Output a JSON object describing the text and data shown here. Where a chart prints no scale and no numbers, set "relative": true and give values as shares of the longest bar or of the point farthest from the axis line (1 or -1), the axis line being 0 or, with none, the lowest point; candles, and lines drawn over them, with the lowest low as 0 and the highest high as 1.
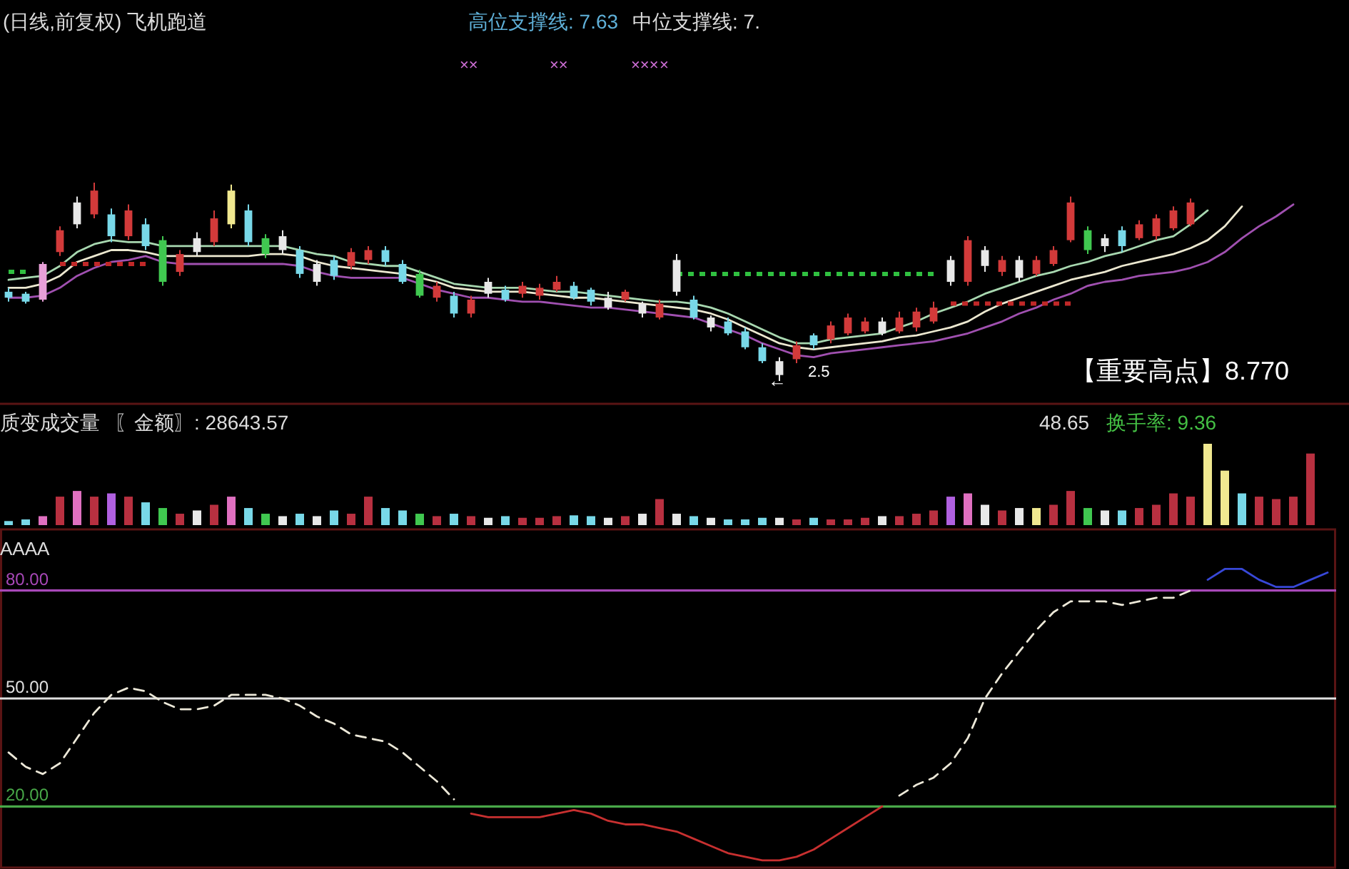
{
  "chart_data": [
    {
      "type": "candlestick",
      "title": "(日线,前复权) 飞机跑道",
      "relative": true,
      "annotations": [
        "高位支撑线: 7.63",
        "中位支撑线: 7.",
        "××",
        "××",
        "×××",
        "×",
        "←",
        "2.5",
        "【重要高点】8.770"
      ],
      "categories": [
        null,
        null,
        null,
        null,
        null,
        null,
        null,
        null,
        null,
        null,
        null,
        null,
        null,
        null,
        null,
        null,
        null,
        null,
        null,
        null,
        null,
        null,
        null,
        null,
        null,
        null,
        null,
        null,
        null,
        null,
        null,
        null,
        null,
        null,
        null,
        null,
        null,
        null,
        null,
        null,
        null,
        null,
        null,
        null,
        null,
        null,
        null,
        null,
        null,
        null,
        null,
        null,
        null,
        null,
        null,
        null,
        null,
        null,
        null,
        null,
        null,
        null,
        null,
        null,
        null,
        null,
        null,
        null,
        null,
        null,
        null,
        null,
        null,
        null,
        null,
        null,
        null,
        null
      ],
      "ohlc": [
        [
          0.45,
          0.47,
          0.4,
          0.42
        ],
        [
          0.44,
          0.45,
          0.39,
          0.4
        ],
        [
          0.41,
          0.6,
          0.4,
          0.59
        ],
        [
          0.65,
          0.78,
          0.63,
          0.76
        ],
        [
          0.9,
          0.93,
          0.77,
          0.79
        ],
        [
          0.84,
          1,
          0.82,
          0.96
        ],
        [
          0.84,
          0.87,
          0.7,
          0.73
        ],
        [
          0.73,
          0.89,
          0.71,
          0.86
        ],
        [
          0.79,
          0.82,
          0.66,
          0.68
        ],
        [
          0.71,
          0.73,
          0.48,
          0.5
        ],
        [
          0.55,
          0.66,
          0.53,
          0.64
        ],
        [
          0.72,
          0.75,
          0.63,
          0.65
        ],
        [
          0.7,
          0.86,
          0.68,
          0.82
        ],
        [
          0.79,
          0.99,
          0.77,
          0.96
        ],
        [
          0.86,
          0.89,
          0.68,
          0.7
        ],
        [
          0.72,
          0.74,
          0.62,
          0.64
        ],
        [
          0.73,
          0.76,
          0.64,
          0.66
        ],
        [
          0.66,
          0.68,
          0.52,
          0.54
        ],
        [
          0.59,
          0.61,
          0.48,
          0.5
        ],
        [
          0.61,
          0.63,
          0.51,
          0.53
        ],
        [
          0.58,
          0.67,
          0.56,
          0.65
        ],
        [
          0.61,
          0.68,
          0.59,
          0.66
        ],
        [
          0.66,
          0.68,
          0.58,
          0.6
        ],
        [
          0.59,
          0.61,
          0.49,
          0.5
        ],
        [
          0.54,
          0.56,
          0.42,
          0.43
        ],
        [
          0.42,
          0.5,
          0.4,
          0.48
        ],
        [
          0.43,
          0.45,
          0.32,
          0.34
        ],
        [
          0.34,
          0.43,
          0.32,
          0.41
        ],
        [
          0.5,
          0.52,
          0.42,
          0.44
        ],
        [
          0.46,
          0.48,
          0.4,
          0.41
        ],
        [
          0.44,
          0.5,
          0.42,
          0.48
        ],
        [
          0.43,
          0.49,
          0.41,
          0.47
        ],
        [
          0.46,
          0.53,
          0.45,
          0.5
        ],
        [
          0.48,
          0.5,
          0.41,
          0.42
        ],
        [
          0.46,
          0.47,
          0.38,
          0.4
        ],
        [
          0.42,
          0.45,
          0.36,
          0.37
        ],
        [
          0.41,
          0.46,
          0.4,
          0.45
        ],
        [
          0.39,
          0.4,
          0.32,
          0.34
        ],
        [
          0.32,
          0.41,
          0.31,
          0.39
        ],
        [
          0.45,
          0.64,
          0.43,
          0.61
        ],
        [
          0.41,
          0.43,
          0.31,
          0.32
        ],
        [
          0.32,
          0.33,
          0.25,
          0.27
        ],
        [
          0.3,
          0.32,
          0.23,
          0.24
        ],
        [
          0.25,
          0.27,
          0.16,
          0.17
        ],
        [
          0.17,
          0.19,
          0.09,
          0.1
        ],
        [
          0.1,
          0.12,
          0,
          0.03
        ],
        [
          0.11,
          0.2,
          0.09,
          0.18
        ],
        [
          0.23,
          0.24,
          0.16,
          0.18
        ],
        [
          0.21,
          0.3,
          0.19,
          0.28
        ],
        [
          0.24,
          0.34,
          0.23,
          0.32
        ],
        [
          0.25,
          0.32,
          0.24,
          0.3
        ],
        [
          0.3,
          0.32,
          0.23,
          0.24
        ],
        [
          0.25,
          0.35,
          0.24,
          0.32
        ],
        [
          0.27,
          0.37,
          0.25,
          0.35
        ],
        [
          0.3,
          0.4,
          0.29,
          0.37
        ],
        [
          0.5,
          0.63,
          0.48,
          0.61
        ],
        [
          0.5,
          0.73,
          0.48,
          0.71
        ],
        [
          0.66,
          0.68,
          0.55,
          0.58
        ],
        [
          0.55,
          0.63,
          0.53,
          0.61
        ],
        [
          0.61,
          0.63,
          0.5,
          0.52
        ],
        [
          0.54,
          0.63,
          0.53,
          0.61
        ],
        [
          0.59,
          0.68,
          0.58,
          0.66
        ],
        [
          0.71,
          0.93,
          0.7,
          0.9
        ],
        [
          0.76,
          0.78,
          0.64,
          0.66
        ],
        [
          0.72,
          0.74,
          0.65,
          0.68
        ],
        [
          0.76,
          0.78,
          0.65,
          0.68
        ],
        [
          0.72,
          0.81,
          0.71,
          0.79
        ],
        [
          0.73,
          0.84,
          0.71,
          0.82
        ],
        [
          0.77,
          0.88,
          0.76,
          0.86
        ],
        [
          0.79,
          0.92,
          0.78,
          0.9
        ],
        null,
        null,
        null,
        null,
        null,
        null,
        null,
        null
      ],
      "colors": [
        "#78d8e8",
        "#78d8e8",
        "#e8a0d8",
        "#d23a3a",
        "#e8e8e8",
        "#d23a3a",
        "#78d8e8",
        "#d23a3a",
        "#78d8e8",
        "#40c850",
        "#d23a3a",
        "#e8e8e8",
        "#d23a3a",
        "#f0e890",
        "#78d8e8",
        "#40c850",
        "#e8e8e8",
        "#78d8e8",
        "#e8e8e8",
        "#78d8e8",
        "#d23a3a",
        "#d23a3a",
        "#78d8e8",
        "#78d8e8",
        "#40c850",
        "#d23a3a",
        "#78d8e8",
        "#d23a3a",
        "#e8e8e8",
        "#78d8e8",
        "#d23a3a",
        "#d23a3a",
        "#d23a3a",
        "#78d8e8",
        "#78d8e8",
        "#e8e8e8",
        "#d23a3a",
        "#e8e8e8",
        "#d23a3a",
        "#e8e8e8",
        "#78d8e8",
        "#e8e8e8",
        "#78d8e8",
        "#78d8e8",
        "#78d8e8",
        "#e8e8e8",
        "#d23a3a",
        "#78d8e8",
        "#d23a3a",
        "#d23a3a",
        "#d23a3a",
        "#e8e8e8",
        "#d23a3a",
        "#d23a3a",
        "#d23a3a",
        "#e8e8e8",
        "#d23a3a",
        "#e8e8e8",
        "#d23a3a",
        "#e8e8e8",
        "#d23a3a",
        "#d23a3a",
        "#d23a3a",
        "#40c850",
        "#e8e8e8",
        "#78d8e8",
        "#d23a3a",
        "#d23a3a",
        "#d23a3a",
        "#d23a3a",
        null,
        null,
        null,
        null,
        null,
        null,
        null,
        null
      ],
      "series": [
        {
          "type": "line",
          "color": "#a8d8b0",
          "values": [
            0.51,
            0.52,
            0.53,
            0.58,
            0.65,
            0.69,
            0.71,
            0.7,
            0.7,
            0.68,
            0.68,
            0.68,
            0.68,
            0.68,
            0.68,
            0.68,
            0.68,
            0.66,
            0.64,
            0.63,
            0.6,
            0.59,
            0.58,
            0.58,
            0.55,
            0.52,
            0.49,
            0.48,
            0.47,
            0.47,
            0.47,
            0.46,
            0.45,
            0.45,
            0.44,
            0.43,
            0.42,
            0.41,
            0.4,
            0.4,
            0.39,
            0.37,
            0.34,
            0.3,
            0.26,
            0.22,
            0.19,
            0.19,
            0.21,
            0.22,
            0.23,
            0.24,
            0.27,
            0.3,
            0.34,
            0.37,
            0.4,
            0.44,
            0.47,
            0.5,
            0.53,
            0.55,
            0.58,
            0.6,
            0.63,
            0.65,
            0.68,
            0.71,
            0.73,
            0.79,
            0.86,
            null,
            null,
            null,
            null,
            null,
            null,
            null
          ]
        },
        {
          "type": "line",
          "color": "#ece8d0",
          "values": [
            0.47,
            0.47,
            0.49,
            0.53,
            0.6,
            0.63,
            0.66,
            0.66,
            0.65,
            0.63,
            0.63,
            0.63,
            0.63,
            0.63,
            0.63,
            0.64,
            0.64,
            0.63,
            0.6,
            0.58,
            0.57,
            0.56,
            0.55,
            0.54,
            0.52,
            0.5,
            0.47,
            0.46,
            0.45,
            0.45,
            0.45,
            0.44,
            0.43,
            0.42,
            0.42,
            0.41,
            0.4,
            0.39,
            0.38,
            0.37,
            0.36,
            0.34,
            0.31,
            0.27,
            0.23,
            0.19,
            0.17,
            0.16,
            0.17,
            0.18,
            0.19,
            0.2,
            0.22,
            0.23,
            0.25,
            0.27,
            0.3,
            0.35,
            0.39,
            0.42,
            0.45,
            0.48,
            0.51,
            0.53,
            0.55,
            0.58,
            0.6,
            0.62,
            0.64,
            0.67,
            0.71,
            0.78,
            0.88,
            null,
            null,
            null,
            null,
            null
          ]
        },
        {
          "type": "line",
          "color": "#a050b0",
          "values": [
            0.42,
            0.42,
            0.43,
            0.47,
            0.53,
            0.57,
            0.6,
            0.61,
            0.63,
            0.6,
            0.59,
            0.59,
            0.59,
            0.59,
            0.59,
            0.59,
            0.59,
            0.58,
            0.55,
            0.53,
            0.52,
            0.52,
            0.52,
            0.52,
            0.49,
            0.46,
            0.44,
            0.42,
            0.42,
            0.41,
            0.4,
            0.4,
            0.39,
            0.38,
            0.37,
            0.37,
            0.36,
            0.35,
            0.34,
            0.33,
            0.32,
            0.29,
            0.26,
            0.23,
            0.19,
            0.16,
            0.13,
            0.12,
            0.14,
            0.15,
            0.16,
            0.17,
            0.18,
            0.19,
            0.2,
            0.22,
            0.24,
            0.27,
            0.3,
            0.34,
            0.37,
            0.41,
            0.44,
            0.48,
            0.5,
            0.51,
            0.53,
            0.54,
            0.55,
            0.57,
            0.6,
            0.65,
            0.72,
            0.78,
            0.83,
            0.89,
            null,
            null
          ]
        },
        {
          "type": "line",
          "line_style": "dotted",
          "color": "#30c040",
          "values": [
            0.55,
            0.55,
            null,
            null,
            null,
            null,
            null,
            null,
            null,
            null,
            null,
            null,
            null,
            null,
            null,
            null,
            null,
            null,
            null,
            null,
            null,
            null,
            null,
            null,
            null,
            null,
            null,
            null,
            null,
            null,
            null,
            null,
            null,
            null,
            null,
            null,
            null,
            null,
            null,
            0.54,
            0.54,
            0.54,
            0.54,
            0.54,
            0.54,
            0.54,
            0.54,
            0.54,
            0.54,
            0.54,
            0.54,
            0.54,
            0.54,
            0.54,
            0.54,
            null,
            null,
            null,
            null,
            null,
            null,
            null,
            null,
            null,
            null,
            null,
            null,
            null,
            null,
            null,
            null,
            null,
            null,
            null,
            null,
            null,
            null,
            null
          ]
        },
        {
          "type": "line",
          "line_style": "dotted",
          "color": "#c02828",
          "values": [
            null,
            null,
            null,
            0.59,
            0.59,
            0.59,
            0.59,
            0.59,
            0.59,
            null,
            null,
            null,
            null,
            null,
            null,
            null,
            null,
            null,
            null,
            null,
            null,
            null,
            null,
            null,
            null,
            null,
            null,
            null,
            null,
            null,
            null,
            null,
            null,
            null,
            null,
            null,
            null,
            null,
            null,
            null,
            null,
            null,
            null,
            null,
            null,
            null,
            null,
            null,
            null,
            null,
            null,
            null,
            null,
            null,
            null,
            0.39,
            0.39,
            0.39,
            0.39,
            0.39,
            0.39,
            0.39,
            0.39,
            null,
            null,
            null,
            null,
            null,
            null,
            null,
            null,
            null,
            null,
            null,
            null,
            null,
            null,
            null
          ]
        }
      ]
    },
    {
      "type": "bar",
      "title": "质变成交量",
      "relative": true,
      "annotations": [
        "〖金额〗: 28643.57",
        "48.65",
        "换手率: 9.36"
      ],
      "categories": [
        null,
        null,
        null,
        null,
        null,
        null,
        null,
        null,
        null,
        null,
        null,
        null,
        null,
        null,
        null,
        null,
        null,
        null,
        null,
        null,
        null,
        null,
        null,
        null,
        null,
        null,
        null,
        null,
        null,
        null,
        null,
        null,
        null,
        null,
        null,
        null,
        null,
        null,
        null,
        null,
        null,
        null,
        null,
        null,
        null,
        null,
        null,
        null,
        null,
        null,
        null,
        null,
        null,
        null,
        null,
        null,
        null,
        null,
        null,
        null,
        null,
        null,
        null,
        null,
        null,
        null,
        null,
        null,
        null,
        null,
        null,
        null,
        null,
        null,
        null,
        null,
        null,
        null
      ],
      "values": [
        0.05,
        0.07,
        0.11,
        0.35,
        0.42,
        0.35,
        0.39,
        0.35,
        0.28,
        0.21,
        0.14,
        0.18,
        0.25,
        0.35,
        0.21,
        0.14,
        0.11,
        0.14,
        0.11,
        0.18,
        0.14,
        0.35,
        0.21,
        0.18,
        0.14,
        0.11,
        0.14,
        0.11,
        0.09,
        0.11,
        0.09,
        0.09,
        0.11,
        0.12,
        0.11,
        0.09,
        0.11,
        0.14,
        0.32,
        0.14,
        0.11,
        0.09,
        0.07,
        0.07,
        0.09,
        0.09,
        0.07,
        0.09,
        0.07,
        0.07,
        0.09,
        0.11,
        0.11,
        0.14,
        0.18,
        0.35,
        0.39,
        0.25,
        0.18,
        0.21,
        0.21,
        0.25,
        0.42,
        0.21,
        0.18,
        0.18,
        0.21,
        0.25,
        0.39,
        0.35,
        1,
        0.67,
        0.39,
        0.35,
        0.32,
        0.35,
        0.88,
        null
      ],
      "colors": [
        "#78d8e8",
        "#78d8e8",
        "#e070c0",
        "#b83040",
        "#e070c0",
        "#b83040",
        "#b060e0",
        "#b83040",
        "#78d8e8",
        "#40c850",
        "#b83040",
        "#e8e8e8",
        "#b83040",
        "#e070c0",
        "#78d8e8",
        "#40c850",
        "#e8e8e8",
        "#78d8e8",
        "#e8e8e8",
        "#78d8e8",
        "#b83040",
        "#b83040",
        "#78d8e8",
        "#78d8e8",
        "#40c850",
        "#b83040",
        "#78d8e8",
        "#b83040",
        "#e8e8e8",
        "#78d8e8",
        "#b83040",
        "#b83040",
        "#b83040",
        "#78d8e8",
        "#78d8e8",
        "#e8e8e8",
        "#b83040",
        "#e8e8e8",
        "#b83040",
        "#e8e8e8",
        "#78d8e8",
        "#e8e8e8",
        "#78d8e8",
        "#78d8e8",
        "#78d8e8",
        "#e8e8e8",
        "#b83040",
        "#78d8e8",
        "#b83040",
        "#b83040",
        "#b83040",
        "#e8e8e8",
        "#b83040",
        "#b83040",
        "#b83040",
        "#b060e0",
        "#e070c0",
        "#e8e8e8",
        "#b83040",
        "#e8e8e8",
        "#f0e890",
        "#b83040",
        "#b83040",
        "#40c850",
        "#e8e8e8",
        "#78d8e8",
        "#b83040",
        "#b83040",
        "#b83040",
        "#b83040",
        "#f0e890",
        "#f0e890",
        "#78d8e8",
        "#b83040",
        "#b83040",
        "#b83040",
        "#b83040",
        null
      ]
    },
    {
      "type": "line",
      "title": "AAAA",
      "ylim": [
        3,
        97
      ],
      "categories": [
        null,
        null,
        null,
        null,
        null,
        null,
        null,
        null,
        null,
        null,
        null,
        null,
        null,
        null,
        null,
        null,
        null,
        null,
        null,
        null,
        null,
        null,
        null,
        null,
        null,
        null,
        null,
        null,
        null,
        null,
        null,
        null,
        null,
        null,
        null,
        null,
        null,
        null,
        null,
        null,
        null,
        null,
        null,
        null,
        null,
        null,
        null,
        null,
        null,
        null,
        null,
        null,
        null,
        null,
        null,
        null,
        null,
        null,
        null,
        null,
        null,
        null,
        null,
        null,
        null,
        null,
        null,
        null,
        null,
        null,
        null,
        null,
        null,
        null,
        null,
        null,
        null,
        null
      ],
      "ref_lines": [
        {
          "axis": "y",
          "value": 80,
          "label": "80.00",
          "color": "#a848b8"
        },
        {
          "axis": "y",
          "value": 50,
          "label": "50.00",
          "color": "#e0e0e0"
        },
        {
          "axis": "y",
          "value": 20,
          "label": "20.00",
          "color": "#48a848"
        }
      ],
      "series": [
        {
          "color": "#ece8d8",
          "line_style": "dashed",
          "values": [
            35,
            31,
            29,
            32,
            39,
            46,
            51,
            53,
            52,
            49,
            47,
            47,
            48,
            51,
            51,
            51,
            50,
            48,
            45,
            43,
            40,
            39,
            38,
            35,
            31,
            27,
            22,
            null,
            null,
            null,
            null,
            null,
            null,
            null,
            null,
            null,
            null,
            null,
            null,
            null,
            null,
            null,
            null,
            null,
            null,
            null,
            null,
            null,
            null,
            null,
            null,
            null,
            23,
            26,
            28,
            32,
            39,
            50,
            57,
            63,
            69,
            74,
            77,
            77,
            77,
            76,
            77,
            78,
            78,
            80,
            null,
            null,
            null,
            null,
            null,
            null,
            null,
            null
          ]
        },
        {
          "color": "#c83030",
          "values": [
            null,
            null,
            null,
            null,
            null,
            null,
            null,
            null,
            null,
            null,
            null,
            null,
            null,
            null,
            null,
            null,
            null,
            null,
            null,
            null,
            null,
            null,
            null,
            null,
            null,
            null,
            null,
            18,
            17,
            17,
            17,
            17,
            18,
            19,
            18,
            16,
            15,
            15,
            14,
            13,
            11,
            9,
            7,
            6,
            5,
            5,
            6,
            8,
            11,
            14,
            17,
            20,
            null,
            null,
            null,
            null,
            null,
            null,
            null,
            null,
            null,
            null,
            null,
            null,
            null,
            null,
            null,
            null,
            null,
            null,
            null,
            null,
            null,
            null,
            null,
            null,
            null,
            null
          ]
        },
        {
          "color": "#3848d8",
          "values": [
            null,
            null,
            null,
            null,
            null,
            null,
            null,
            null,
            null,
            null,
            null,
            null,
            null,
            null,
            null,
            null,
            null,
            null,
            null,
            null,
            null,
            null,
            null,
            null,
            null,
            null,
            null,
            null,
            null,
            null,
            null,
            null,
            null,
            null,
            null,
            null,
            null,
            null,
            null,
            null,
            null,
            null,
            null,
            null,
            null,
            null,
            null,
            null,
            null,
            null,
            null,
            null,
            null,
            null,
            null,
            null,
            null,
            null,
            null,
            null,
            null,
            null,
            null,
            null,
            null,
            null,
            null,
            null,
            null,
            null,
            83,
            86,
            86,
            83,
            81,
            81,
            83,
            85
          ]
        }
      ]
    }
  ]
}
